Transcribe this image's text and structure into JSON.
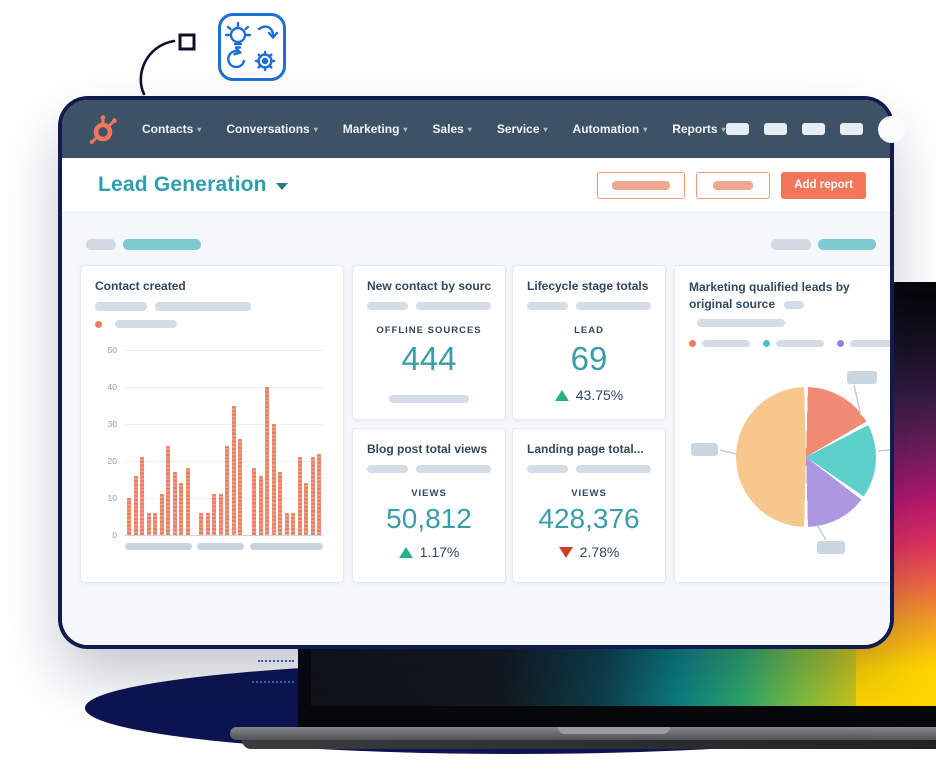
{
  "nav": {
    "items": [
      "Contacts",
      "Conversations",
      "Marketing",
      "Sales",
      "Service",
      "Automation",
      "Reports"
    ],
    "icon_placeholder_count": 4
  },
  "header": {
    "title": "Lead Generation",
    "add_report": "Add report"
  },
  "cards": {
    "contact_created": {
      "title": "Contact created",
      "legend_placeholders": 1
    },
    "new_contact_by_source": {
      "title": "New contact by source",
      "metric_label": "OFFLINE SOURCES",
      "value": "444"
    },
    "lifecycle_stage_totals": {
      "title": "Lifecycle stage totals",
      "metric_label": "LEAD",
      "value": "69",
      "delta": "43.75%",
      "delta_direction": "up"
    },
    "blog_post_total_views": {
      "title": "Blog post total views",
      "metric_label": "VIEWS",
      "value": "50,812",
      "delta": "1.17%",
      "delta_direction": "up"
    },
    "landing_page_total": {
      "title": "Landing page total...",
      "metric_label": "VIEWS",
      "value": "428,376",
      "delta": "2.78%",
      "delta_direction": "down"
    },
    "mql_by_source": {
      "title": "Marketing qualified leads by original source",
      "legend_placeholders": 3
    }
  },
  "chart_data": [
    {
      "type": "bar",
      "title": "Contact created",
      "ylim": [
        0,
        50
      ],
      "y_ticks": [
        0,
        10,
        20,
        30,
        40,
        50
      ],
      "grid": true,
      "bar_color": "#ed8166",
      "x_label_placeholders": 3,
      "groups": [
        [
          10,
          16,
          21,
          6,
          6,
          11,
          24,
          17,
          14,
          18
        ],
        [
          6,
          6,
          11,
          11,
          24,
          35,
          26
        ],
        [
          18,
          16,
          40,
          30,
          17,
          6,
          6,
          21,
          14,
          21,
          22
        ]
      ]
    },
    {
      "type": "pie",
      "title": "Marketing qualified leads by original source",
      "slices": [
        {
          "name": "slice-1",
          "value": 17,
          "color": "#f18b74"
        },
        {
          "name": "slice-2",
          "value": 18,
          "color": "#5ed0cb"
        },
        {
          "name": "slice-3",
          "value": 15,
          "color": "#ae97e1"
        },
        {
          "name": "slice-4",
          "value": 50,
          "color": "#f6c88e"
        }
      ],
      "legend_dot_colors": [
        "#f2795c",
        "#4fc1c9",
        "#8c86d8"
      ],
      "legend_placeholders": 3
    }
  ],
  "colors": {
    "nav_bg": "#3d5264",
    "hubspot_orange": "#f2765a",
    "heading_teal": "#2d9fae",
    "kpi_teal": "#3a9daa",
    "delta_up_green": "#29b08a",
    "delta_down_red": "#cf3d2a",
    "body_bg": "#f5f8fa",
    "skeleton_gray": "#d4dce5",
    "window_ring_navy": "#131b4e"
  }
}
